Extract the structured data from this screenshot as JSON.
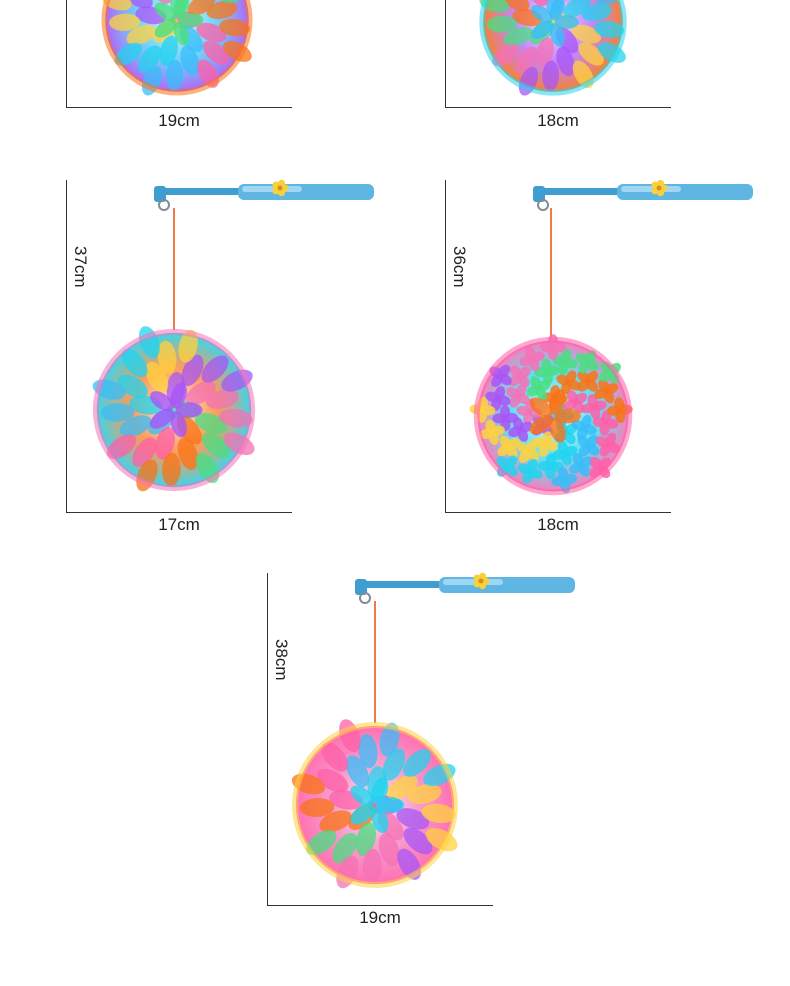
{
  "colors": {
    "axis": "#333333",
    "stick": "#5fb6e3",
    "stick_dark": "#3f9dcf",
    "string": "#f07a4a",
    "flower": "#f6d23a",
    "petal_palette": [
      "#ff5fa8",
      "#ffd23f",
      "#4ade80",
      "#38bdf8",
      "#a855f7",
      "#f97316",
      "#22d3ee",
      "#f472b6"
    ]
  },
  "lanterns": [
    {
      "id": "lantern-1",
      "width_label": "19cm",
      "height_label": ""
    },
    {
      "id": "lantern-2",
      "width_label": "18cm",
      "height_label": ""
    },
    {
      "id": "lantern-3",
      "width_label": "17cm",
      "height_label": "37cm"
    },
    {
      "id": "lantern-4",
      "width_label": "18cm",
      "height_label": "36cm"
    },
    {
      "id": "lantern-5",
      "width_label": "19cm",
      "height_label": "38cm"
    }
  ]
}
